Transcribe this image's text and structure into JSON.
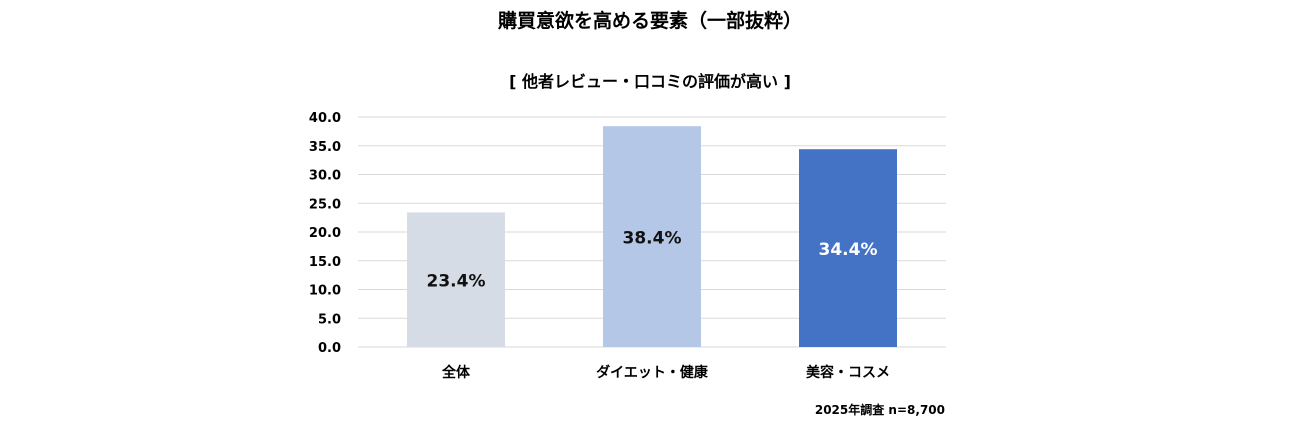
{
  "chart_data": {
    "type": "bar",
    "title": "購買意欲を高める要素（一部抜粋）",
    "subtitle": "[ 他者レビュー・口コミの評価が高い ]",
    "categories": [
      "全体",
      "ダイエット・健康",
      "美容・コスメ"
    ],
    "values": [
      23.4,
      38.4,
      34.4
    ],
    "data_labels": [
      "23.4%",
      "38.4%",
      "34.4%"
    ],
    "bar_colors": [
      "#D6DCE5",
      "#B4C7E7",
      "#4472C4"
    ],
    "label_colors": [
      "#111111",
      "#111111",
      "#FFFFFF"
    ],
    "ylim": [
      0,
      40
    ],
    "yticks": [
      "0.0",
      "5.0",
      "10.0",
      "15.0",
      "20.0",
      "25.0",
      "30.0",
      "35.0",
      "40.0"
    ],
    "grid": true,
    "xlabel": "",
    "ylabel": "",
    "note": "2025年調査 n=8,700"
  }
}
